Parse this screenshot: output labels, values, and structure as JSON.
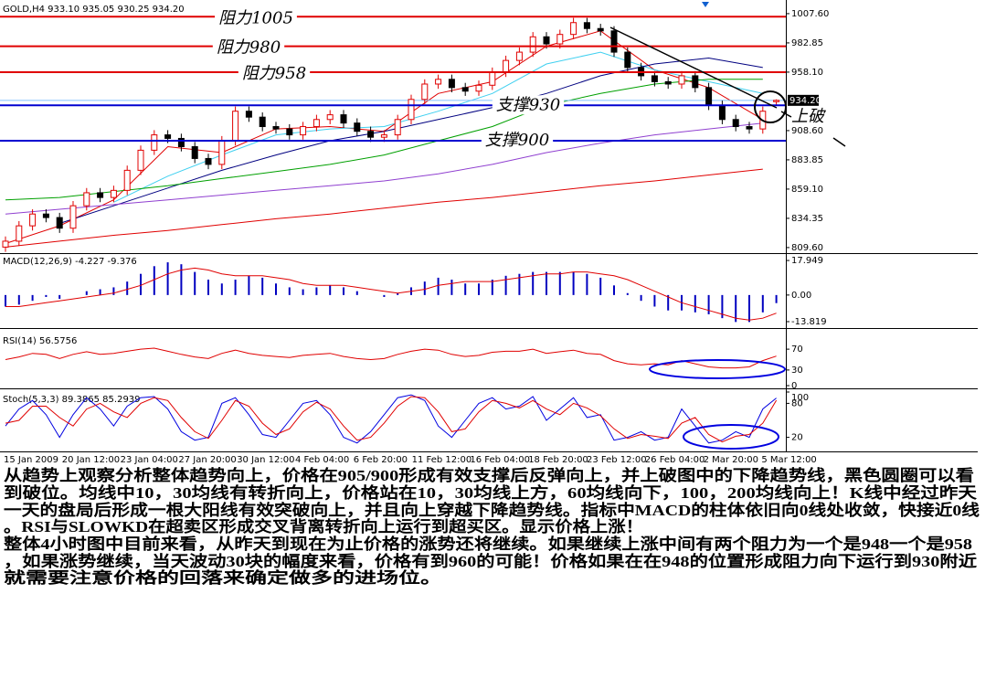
{
  "chart_data": [
    {
      "type": "candlestick",
      "header": "GOLD,H4 933.10 935.05 930.25 934.20",
      "up_color": "#e00000",
      "down_color": "#000000",
      "candles": {
        "open": [
          810,
          815,
          828,
          838,
          835,
          826,
          845,
          856,
          852,
          858,
          875,
          892,
          905,
          902,
          895,
          885,
          880,
          900,
          925,
          920,
          912,
          910,
          905,
          912,
          918,
          922,
          915,
          908,
          903,
          905,
          918,
          935,
          948,
          952,
          945,
          942,
          947,
          958,
          968,
          975,
          988,
          982,
          990,
          1000,
          995,
          993,
          975,
          962,
          955,
          950,
          948,
          955,
          945,
          930,
          918,
          912,
          910,
          933.1
        ],
        "high": [
          819,
          832,
          842,
          842,
          839,
          849,
          860,
          860,
          862,
          879,
          896,
          909,
          909,
          906,
          899,
          889,
          904,
          929,
          929,
          924,
          916,
          914,
          916,
          922,
          926,
          926,
          919,
          912,
          909,
          922,
          939,
          952,
          956,
          956,
          949,
          951,
          962,
          972,
          979,
          992,
          992,
          994,
          1004,
          1004,
          999,
          997,
          979,
          966,
          959,
          954,
          959,
          959,
          949,
          934,
          922,
          916,
          929,
          935.05
        ],
        "low": [
          806,
          811,
          824,
          831,
          822,
          822,
          841,
          848,
          848,
          854,
          871,
          888,
          898,
          891,
          881,
          876,
          876,
          896,
          916,
          908,
          906,
          901,
          901,
          908,
          914,
          911,
          904,
          899,
          899,
          901,
          914,
          931,
          944,
          941,
          938,
          938,
          943,
          954,
          964,
          971,
          978,
          978,
          986,
          991,
          989,
          971,
          958,
          951,
          946,
          944,
          944,
          941,
          926,
          914,
          908,
          906,
          906,
          930.25
        ],
        "close": [
          815,
          828,
          838,
          835,
          826,
          845,
          856,
          852,
          858,
          875,
          892,
          905,
          902,
          895,
          885,
          880,
          900,
          925,
          920,
          912,
          910,
          905,
          912,
          918,
          922,
          915,
          908,
          903,
          905,
          918,
          935,
          948,
          952,
          945,
          942,
          947,
          958,
          968,
          975,
          988,
          982,
          990,
          1000,
          995,
          993,
          975,
          962,
          955,
          950,
          948,
          955,
          945,
          930,
          918,
          912,
          910,
          925,
          934.2
        ]
      },
      "moving_averages": [
        {
          "color": "#e00000",
          "values": [
            813,
            828,
            850,
            895,
            890,
            910,
            912,
            908,
            940,
            950,
            980,
            993,
            960,
            945,
            918
          ]
        },
        {
          "color": "#40d0f0",
          "values": [
            null,
            null,
            848,
            870,
            888,
            905,
            910,
            912,
            925,
            940,
            965,
            975,
            960,
            950,
            940
          ]
        },
        {
          "color": "#000080",
          "values": [
            null,
            830,
            845,
            860,
            875,
            888,
            900,
            908,
            918,
            928,
            940,
            955,
            965,
            970,
            962
          ]
        },
        {
          "color": "#00a000",
          "values": [
            850,
            852,
            857,
            862,
            868,
            874,
            880,
            888,
            900,
            912,
            930,
            940,
            948,
            952,
            952
          ]
        },
        {
          "color": "#9040d0",
          "values": [
            838,
            842,
            846,
            850,
            854,
            858,
            862,
            866,
            872,
            880,
            890,
            898,
            905,
            910,
            915
          ]
        },
        {
          "color": "#e00000",
          "values": [
            810,
            815,
            820,
            824,
            829,
            834,
            838,
            843,
            848,
            852,
            857,
            862,
            866,
            871,
            876
          ]
        }
      ],
      "levels": [
        {
          "label": "阻力1005",
          "value": 1005,
          "color": "#e00000"
        },
        {
          "label": "阻力980",
          "value": 980,
          "color": "#e00000"
        },
        {
          "label": "阻力958",
          "value": 958,
          "color": "#e00000"
        },
        {
          "label": "支撑930",
          "value": 930,
          "color": "#0000d0"
        },
        {
          "label": "支撑900",
          "value": 900,
          "color": "#0000d0"
        }
      ],
      "last_price_tag": {
        "value": 934.2,
        "label": "934.20"
      },
      "annotation": "上破",
      "ylim": [
        804.9,
        1017.6
      ],
      "yticks": [
        {
          "value": 1007.6,
          "label": "1007.60"
        },
        {
          "value": 982.85,
          "label": "982.85"
        },
        {
          "value": 958.1,
          "label": "958.10"
        },
        {
          "value": 908.6,
          "label": "908.60"
        },
        {
          "value": 883.85,
          "label": "883.85"
        },
        {
          "value": 859.1,
          "label": "859.10"
        },
        {
          "value": 834.35,
          "label": "834.35"
        },
        {
          "value": 809.6,
          "label": "809.60"
        }
      ],
      "x_labels": [
        "15 Jan 2009",
        "20 Jan 12:00",
        "23 Jan 04:00",
        "27 Jan 20:00",
        "30 Jan 12:00",
        "4 Feb 04:00",
        "6 Feb 20:00",
        "11 Feb 12:00",
        "16 Feb 04:00",
        "18 Feb 20:00",
        "23 Feb 12:00",
        "26 Feb 04:00",
        "2 Mar 20:00",
        "5 Mar 12:00"
      ]
    },
    {
      "type": "macd",
      "header": "MACD(12,26,9) -4.227 -9.376",
      "bar_color": "#0000c0",
      "line_color": "#e00000",
      "histogram": [
        -6,
        -5,
        -3,
        -1,
        -2,
        0,
        2,
        3,
        4,
        7,
        11,
        15,
        17,
        16,
        12,
        8,
        6,
        8,
        10,
        9,
        6,
        4,
        3,
        4,
        5,
        4,
        2,
        0,
        -1,
        1,
        4,
        7,
        9,
        8,
        6,
        6,
        8,
        10,
        11,
        12,
        12,
        12,
        12,
        11,
        9,
        5,
        1,
        -3,
        -6,
        -8,
        -8,
        -9,
        -10,
        -12,
        -14,
        -14,
        -9,
        -4.2
      ],
      "signal": [
        -6,
        -6,
        -5,
        -4,
        -3,
        -2,
        -1,
        0,
        1,
        3,
        5,
        8,
        11,
        13,
        14,
        13,
        11,
        10,
        10,
        10,
        9,
        8,
        6,
        5,
        5,
        5,
        4,
        3,
        2,
        1,
        2,
        3,
        5,
        6,
        7,
        7,
        7,
        8,
        9,
        10,
        11,
        11,
        12,
        12,
        11,
        10,
        8,
        5,
        2,
        -1,
        -4,
        -6,
        -8,
        -10,
        -12,
        -13,
        -12,
        -9.4
      ],
      "ylim": [
        -16.2,
        21.3
      ],
      "yticks": [
        17.949,
        {
          "value": 0,
          "label": "0.00"
        },
        -13.819
      ]
    },
    {
      "type": "line",
      "header": "RSI(14) 56.5756",
      "series": [
        {
          "color": "#e00000",
          "values": [
            50,
            55,
            62,
            60,
            52,
            60,
            65,
            60,
            62,
            66,
            70,
            72,
            66,
            60,
            55,
            52,
            62,
            68,
            62,
            58,
            56,
            54,
            58,
            60,
            62,
            56,
            52,
            50,
            52,
            60,
            66,
            70,
            68,
            60,
            56,
            58,
            64,
            66,
            66,
            70,
            62,
            65,
            68,
            62,
            60,
            48,
            42,
            40,
            42,
            40,
            48,
            42,
            36,
            34,
            34,
            36,
            48,
            56.6
          ]
        }
      ],
      "ylim": [
        0,
        100
      ],
      "yticks": [
        70,
        30,
        0
      ]
    },
    {
      "type": "line",
      "header": "Stoch(5,3,3) 89.3865 85.2939",
      "series": [
        {
          "color": "#0000e0",
          "values": [
            40,
            70,
            85,
            60,
            20,
            60,
            90,
            70,
            40,
            75,
            90,
            92,
            70,
            30,
            15,
            20,
            80,
            90,
            60,
            25,
            20,
            50,
            80,
            85,
            60,
            20,
            10,
            30,
            60,
            90,
            95,
            85,
            40,
            20,
            50,
            80,
            90,
            70,
            75,
            92,
            50,
            70,
            90,
            55,
            60,
            15,
            20,
            30,
            15,
            20,
            70,
            40,
            10,
            15,
            30,
            20,
            70,
            89.4
          ]
        },
        {
          "color": "#e00000",
          "values": [
            45,
            50,
            75,
            75,
            55,
            40,
            70,
            80,
            65,
            55,
            80,
            90,
            85,
            55,
            30,
            18,
            50,
            85,
            75,
            45,
            25,
            35,
            65,
            82,
            70,
            40,
            15,
            20,
            45,
            75,
            92,
            90,
            65,
            30,
            35,
            65,
            85,
            80,
            72,
            85,
            70,
            60,
            80,
            72,
            58,
            35,
            18,
            25,
            22,
            18,
            45,
            55,
            25,
            12,
            22,
            25,
            45,
            85.3
          ]
        }
      ],
      "ylim": [
        0,
        100
      ],
      "yticks": [
        100,
        80,
        20
      ]
    }
  ],
  "commentary": [
    "从趋势上观察分析整体趋势向上，价格在905/900形成有效支撑后反弹向上，并上破图中的下降趋势线，黑色圆圈可以看",
    "到破位。均线中10，30均线有转折向上，价格站在10，30均线上方，60均线向下，100，200均线向上！K线中经过昨天",
    "一天的盘局后形成一根大阳线有效突破向上，并且向上穿越下降趋势线。指标中MACD的柱体依旧向0线处收敛，快接近0线",
    "。RSI与SLOWKD在超卖区形成交叉背离转折向上运行到超买区。显示价格上涨！",
    "整体4小时图中目前来看，从昨天到现在为止价格的涨势还将继续。如果继续上涨中间有两个阻力为一个是948一个是958",
    "，如果涨势继续，当天波动30块的幅度来看，价格有到960的可能！价格如果在在948的位置形成阻力向下运行到930附近",
    "就需要注意价格的回落来确定做多的进场位。"
  ]
}
